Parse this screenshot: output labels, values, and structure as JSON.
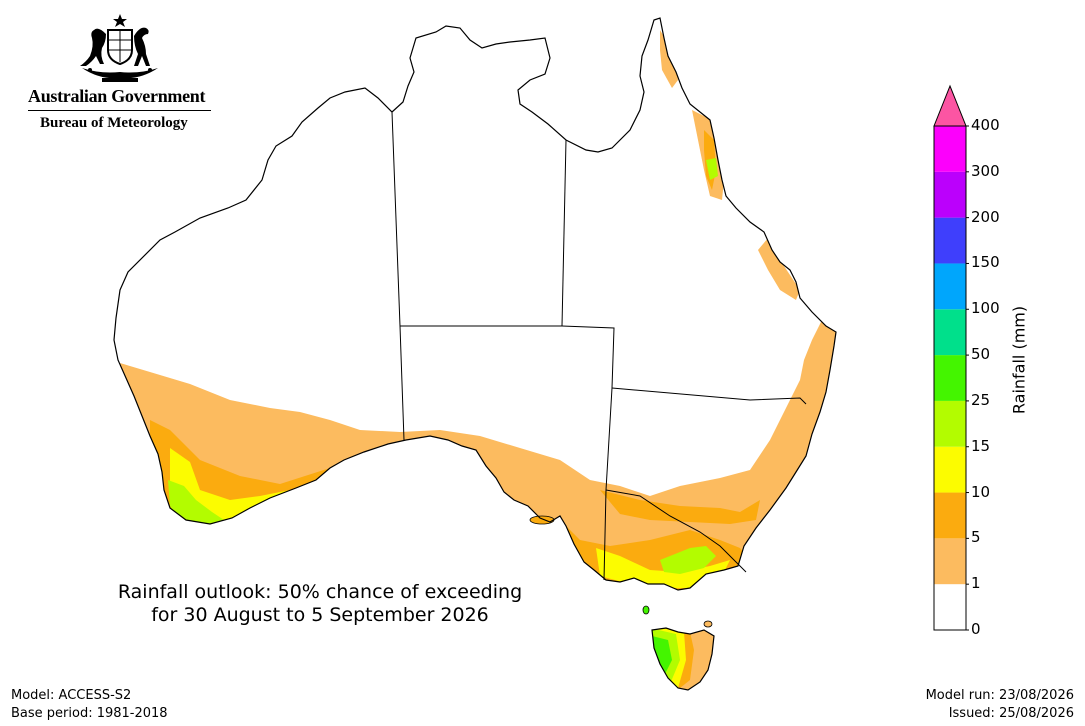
{
  "header": {
    "gov_name": "Australian Government",
    "agency": "Bureau of Meteorology",
    "crest_icon": "coat-of-arms-icon"
  },
  "map": {
    "caption_line1": "Rainfall outlook: 50% chance of exceeding",
    "caption_line2": "for 30 August to 5 September 2026",
    "regions_by_band": {
      "1-5": [
        "South-west WA outer zone",
        "Southern WA coast",
        "SA gulfs and south-east",
        "Victoria inland",
        "NSW south and east",
        "Eastern Queensland coast",
        "Cape York east coast",
        "Eastern Tasmania"
      ],
      "5-10": [
        "South-west WA",
        "Southern Victoria",
        "NSW south-east",
        "North Queensland coast",
        "Kangaroo Island"
      ],
      "10-15": [
        "South-west WA coast",
        "Victorian coast",
        "Victorian alps",
        "Western Tasmania"
      ],
      "15-25": [
        "Far south-west WA",
        "Victorian high country",
        "Western Tasmania",
        "Wet tropics Queensland"
      ],
      "25-50": [
        "Western Tasmania highlands"
      ]
    }
  },
  "colorbar": {
    "title": "Rainfall (mm)",
    "ticks": [
      "0",
      "1",
      "5",
      "10",
      "15",
      "25",
      "50",
      "100",
      "150",
      "200",
      "300",
      "400"
    ],
    "colors": [
      "#ffffff",
      "#fcbb5f",
      "#fbab0f",
      "#fcfc00",
      "#b3fc00",
      "#44f500",
      "#00e08b",
      "#00a6fc",
      "#3f3ffc",
      "#bb00fc",
      "#fc00fc",
      "#fc55a3"
    ],
    "outline": "#000000"
  },
  "footer": {
    "model": "Model: ACCESS-S2",
    "base_period": "Base period: 1981-2018",
    "model_run": "Model run: 23/08/2026",
    "issued": "Issued: 25/08/2026"
  }
}
